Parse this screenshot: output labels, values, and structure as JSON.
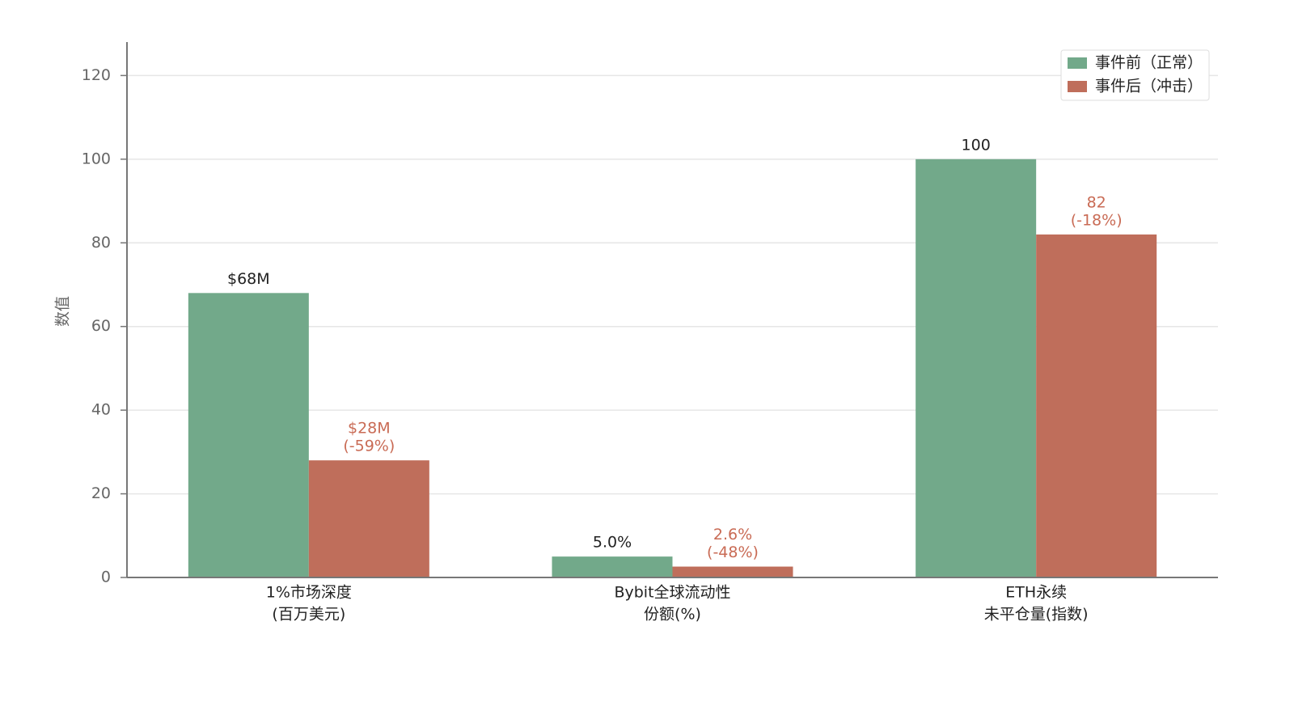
{
  "chart_data": {
    "type": "bar",
    "ylabel": "数值",
    "categories": [
      [
        "1%市场深度",
        "(百万美元)"
      ],
      [
        "Bybit全球流动性",
        "份额(%)"
      ],
      [
        "ETH永续",
        "未平仓量(指数)"
      ]
    ],
    "series": [
      {
        "name": "事件前（正常）",
        "color": "#72a98a",
        "label_color": "#222222",
        "values": [
          68,
          5.0,
          100
        ],
        "value_labels": [
          "$68M",
          "5.0%",
          "100"
        ]
      },
      {
        "name": "事件后（冲击）",
        "color": "#bf6e5b",
        "label_color": "#c96b55",
        "values": [
          28,
          2.6,
          82
        ],
        "value_labels": [
          [
            "$28M",
            "(-59%)"
          ],
          [
            "2.6%",
            "(-48%)"
          ],
          [
            "82",
            "(-18%)"
          ]
        ]
      }
    ],
    "ylim": [
      0,
      128
    ],
    "yticks": [
      0,
      20,
      40,
      60,
      80,
      100,
      120
    ],
    "grid": true,
    "legend": "upper right"
  }
}
